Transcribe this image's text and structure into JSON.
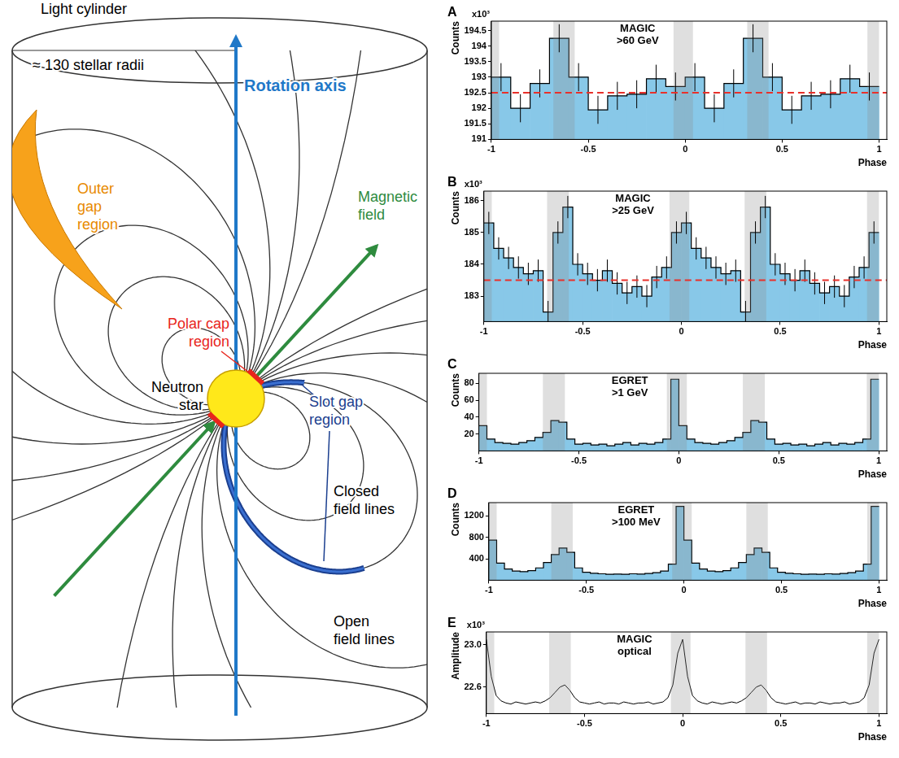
{
  "diagram": {
    "labels": {
      "light_cylinder": "Light cylinder",
      "radius": "≈ 130 stellar radii",
      "rotation_axis": "Rotation axis",
      "magnetic_field": "Magnetic field",
      "outer_gap": "Outer gap region",
      "polar_cap": "Polar cap region",
      "neutron_star": "Neutron star",
      "slot_gap": "Slot gap region",
      "closed_lines": "Closed field lines",
      "open_lines": "Open field lines"
    }
  },
  "chart_data": [
    {
      "panel": "A",
      "type": "bar",
      "title": "MAGIC >60 GeV",
      "xlabel": "Phase",
      "ylabel": "Counts",
      "y_scale_note": "x10³",
      "color": "#88c8e8",
      "bins": [
        -1,
        -0.9,
        -0.8,
        -0.7,
        -0.6,
        -0.5,
        -0.4,
        -0.3,
        -0.2,
        -0.1,
        0,
        0.1,
        0.2,
        0.3,
        0.4,
        0.5,
        0.6,
        0.7,
        0.8,
        0.9,
        1
      ],
      "values": [
        193.0,
        192.0,
        192.8,
        194.25,
        193.0,
        191.95,
        192.4,
        192.45,
        192.95,
        192.7,
        193.0,
        192.0,
        192.8,
        194.25,
        193.0,
        191.95,
        192.4,
        192.45,
        192.95,
        192.7
      ],
      "errors": [
        0.45,
        0.45,
        0.45,
        0.45,
        0.45,
        0.45,
        0.45,
        0.45,
        0.45,
        0.45,
        0.45,
        0.45,
        0.45,
        0.45,
        0.45,
        0.45,
        0.45,
        0.45,
        0.45,
        0.45
      ],
      "baseline": 192.5,
      "shaded_phases": [
        [
          -1,
          -0.96
        ],
        [
          -0.68,
          -0.57
        ],
        [
          -0.06,
          0.04
        ],
        [
          0.32,
          0.43
        ],
        [
          0.94,
          1
        ]
      ],
      "xlim": [
        -1,
        1.04
      ],
      "xticks": [
        -1,
        -0.5,
        0,
        0.5,
        1
      ],
      "ylim": [
        191,
        194.8
      ],
      "yticks": [
        191,
        191.5,
        192,
        192.5,
        193,
        193.5,
        194,
        194.5
      ]
    },
    {
      "panel": "B",
      "type": "bar",
      "title": "MAGIC >25 GeV",
      "xlabel": "Phase",
      "ylabel": "Counts",
      "y_scale_note": "x10³",
      "color": "#88c8e8",
      "bins": [
        -1,
        -0.95,
        -0.9,
        -0.85,
        -0.8,
        -0.75,
        -0.7,
        -0.65,
        -0.6,
        -0.55,
        -0.5,
        -0.45,
        -0.4,
        -0.35,
        -0.3,
        -0.25,
        -0.2,
        -0.15,
        -0.1,
        -0.05,
        0,
        0.05,
        0.1,
        0.15,
        0.2,
        0.25,
        0.3,
        0.35,
        0.4,
        0.45,
        0.5,
        0.55,
        0.6,
        0.65,
        0.7,
        0.75,
        0.8,
        0.85,
        0.9,
        0.95,
        1
      ],
      "values": [
        185.3,
        184.5,
        184.2,
        183.9,
        183.7,
        183.8,
        182.5,
        185.0,
        185.8,
        184.0,
        183.7,
        183.5,
        183.8,
        183.4,
        183.1,
        183.3,
        183.0,
        183.6,
        183.9,
        185.0,
        185.3,
        184.5,
        184.2,
        183.9,
        183.7,
        183.8,
        182.5,
        185.0,
        185.8,
        184.0,
        183.7,
        183.5,
        183.8,
        183.4,
        183.1,
        183.3,
        183.0,
        183.6,
        183.9,
        185.0
      ],
      "errors": [
        0.35,
        0.35,
        0.35,
        0.35,
        0.35,
        0.35,
        0.35,
        0.35,
        0.35,
        0.35,
        0.35,
        0.35,
        0.35,
        0.35,
        0.35,
        0.35,
        0.35,
        0.35,
        0.35,
        0.35,
        0.35,
        0.35,
        0.35,
        0.35,
        0.35,
        0.35,
        0.35,
        0.35,
        0.35,
        0.35,
        0.35,
        0.35,
        0.35,
        0.35,
        0.35,
        0.35,
        0.35,
        0.35,
        0.35,
        0.35
      ],
      "baseline": 183.5,
      "shaded_phases": [
        [
          -1,
          -0.96
        ],
        [
          -0.68,
          -0.57
        ],
        [
          -0.06,
          0.04
        ],
        [
          0.32,
          0.43
        ],
        [
          0.94,
          1
        ]
      ],
      "xlim": [
        -1,
        1.04
      ],
      "xticks": [
        -1,
        -0.5,
        0,
        0.5,
        1
      ],
      "ylim": [
        182.2,
        186.3
      ],
      "yticks": [
        183,
        184,
        185,
        186
      ]
    },
    {
      "panel": "C",
      "type": "bar",
      "title": "EGRET >1 GeV",
      "xlabel": "Phase",
      "ylabel": "Counts",
      "color": "#88c8e8",
      "bins": [
        -1,
        -0.96,
        -0.92,
        -0.88,
        -0.84,
        -0.8,
        -0.76,
        -0.72,
        -0.68,
        -0.64,
        -0.6,
        -0.56,
        -0.52,
        -0.48,
        -0.44,
        -0.4,
        -0.36,
        -0.32,
        -0.28,
        -0.24,
        -0.2,
        -0.16,
        -0.12,
        -0.08,
        -0.04,
        0,
        0.04,
        0.08,
        0.12,
        0.16,
        0.2,
        0.24,
        0.28,
        0.32,
        0.36,
        0.4,
        0.44,
        0.48,
        0.52,
        0.56,
        0.6,
        0.64,
        0.68,
        0.72,
        0.76,
        0.8,
        0.84,
        0.88,
        0.92,
        0.96,
        1
      ],
      "values": [
        30,
        14,
        10,
        9,
        8,
        10,
        12,
        16,
        22,
        36,
        34,
        14,
        8,
        9,
        7,
        8,
        6,
        8,
        10,
        7,
        9,
        8,
        10,
        14,
        85,
        30,
        14,
        10,
        9,
        8,
        10,
        12,
        16,
        22,
        36,
        34,
        14,
        8,
        9,
        7,
        8,
        6,
        8,
        10,
        7,
        9,
        8,
        10,
        14,
        85
      ],
      "shaded_phases": [
        [
          -1,
          -0.96
        ],
        [
          -0.68,
          -0.57
        ],
        [
          -0.06,
          0.04
        ],
        [
          0.32,
          0.43
        ],
        [
          0.94,
          1
        ]
      ],
      "xlim": [
        -1,
        1.04
      ],
      "xticks": [
        -1,
        -0.5,
        0,
        0.5,
        1
      ],
      "ylim": [
        0,
        92
      ],
      "yticks": [
        20,
        40,
        60,
        80
      ]
    },
    {
      "panel": "D",
      "type": "bar",
      "title": "EGRET >100 MeV",
      "xlabel": "Phase",
      "ylabel": "Counts",
      "color": "#88c8e8",
      "bins": [
        -1,
        -0.96,
        -0.92,
        -0.88,
        -0.84,
        -0.8,
        -0.76,
        -0.72,
        -0.68,
        -0.64,
        -0.6,
        -0.56,
        -0.52,
        -0.48,
        -0.44,
        -0.4,
        -0.36,
        -0.32,
        -0.28,
        -0.24,
        -0.2,
        -0.16,
        -0.12,
        -0.08,
        -0.04,
        0,
        0.04,
        0.08,
        0.12,
        0.16,
        0.2,
        0.24,
        0.28,
        0.32,
        0.36,
        0.4,
        0.44,
        0.48,
        0.52,
        0.56,
        0.6,
        0.64,
        0.68,
        0.72,
        0.76,
        0.8,
        0.84,
        0.88,
        0.92,
        0.96,
        1
      ],
      "values": [
        750,
        320,
        210,
        170,
        160,
        180,
        230,
        330,
        480,
        600,
        520,
        230,
        150,
        130,
        120,
        110,
        115,
        110,
        120,
        115,
        125,
        140,
        170,
        300,
        1380,
        750,
        320,
        210,
        170,
        160,
        180,
        230,
        330,
        480,
        600,
        520,
        230,
        150,
        130,
        120,
        110,
        115,
        110,
        120,
        115,
        125,
        140,
        170,
        300,
        1380
      ],
      "shaded_phases": [
        [
          -1,
          -0.96
        ],
        [
          -0.68,
          -0.57
        ],
        [
          -0.06,
          0.04
        ],
        [
          0.32,
          0.43
        ],
        [
          0.94,
          1
        ]
      ],
      "xlim": [
        -1,
        1.04
      ],
      "xticks": [
        -1,
        -0.5,
        0,
        0.5,
        1
      ],
      "ylim": [
        0,
        1450
      ],
      "yticks": [
        400,
        800,
        1200
      ]
    },
    {
      "panel": "E",
      "type": "line",
      "title": "MAGIC optical",
      "xlabel": "Phase",
      "ylabel": "Amplitude",
      "y_scale_note": "x10³",
      "color": "#000000",
      "x": [
        -1,
        -0.975,
        -0.95,
        -0.925,
        -0.9,
        -0.875,
        -0.85,
        -0.825,
        -0.8,
        -0.775,
        -0.75,
        -0.725,
        -0.7,
        -0.675,
        -0.65,
        -0.625,
        -0.6,
        -0.575,
        -0.55,
        -0.525,
        -0.5,
        -0.475,
        -0.45,
        -0.425,
        -0.4,
        -0.375,
        -0.35,
        -0.325,
        -0.3,
        -0.275,
        -0.25,
        -0.225,
        -0.2,
        -0.175,
        -0.15,
        -0.125,
        -0.1,
        -0.075,
        -0.05,
        -0.025,
        0,
        0.025,
        0.05,
        0.075,
        0.1,
        0.125,
        0.15,
        0.175,
        0.2,
        0.225,
        0.25,
        0.275,
        0.3,
        0.325,
        0.35,
        0.375,
        0.4,
        0.425,
        0.45,
        0.475,
        0.5,
        0.525,
        0.55,
        0.575,
        0.6,
        0.625,
        0.65,
        0.675,
        0.7,
        0.725,
        0.75,
        0.775,
        0.8,
        0.825,
        0.85,
        0.875,
        0.9,
        0.925,
        0.95,
        0.975,
        1
      ],
      "values": [
        23.05,
        22.7,
        22.52,
        22.47,
        22.45,
        22.44,
        22.46,
        22.45,
        22.44,
        22.45,
        22.46,
        22.45,
        22.47,
        22.5,
        22.55,
        22.6,
        22.62,
        22.57,
        22.5,
        22.46,
        22.45,
        22.44,
        22.45,
        22.46,
        22.44,
        22.45,
        22.45,
        22.44,
        22.46,
        22.45,
        22.44,
        22.45,
        22.45,
        22.46,
        22.44,
        22.45,
        22.46,
        22.5,
        22.62,
        22.92,
        23.05,
        22.7,
        22.52,
        22.47,
        22.45,
        22.44,
        22.46,
        22.45,
        22.44,
        22.45,
        22.46,
        22.45,
        22.47,
        22.5,
        22.55,
        22.6,
        22.62,
        22.57,
        22.5,
        22.46,
        22.45,
        22.44,
        22.45,
        22.46,
        22.44,
        22.45,
        22.45,
        22.44,
        22.46,
        22.45,
        22.44,
        22.45,
        22.45,
        22.46,
        22.44,
        22.45,
        22.46,
        22.5,
        22.62,
        22.92,
        23.05
      ],
      "shaded_phases": [
        [
          -1,
          -0.96
        ],
        [
          -0.68,
          -0.57
        ],
        [
          -0.06,
          0.04
        ],
        [
          0.32,
          0.43
        ],
        [
          0.94,
          1
        ]
      ],
      "xlim": [
        -1,
        1.04
      ],
      "xticks": [
        -1,
        -0.5,
        0,
        0.5,
        1
      ],
      "ylim": [
        22.35,
        23.12
      ],
      "yticks": [
        22.6,
        {
          "value": 23,
          "label": "23.0"
        }
      ]
    }
  ]
}
